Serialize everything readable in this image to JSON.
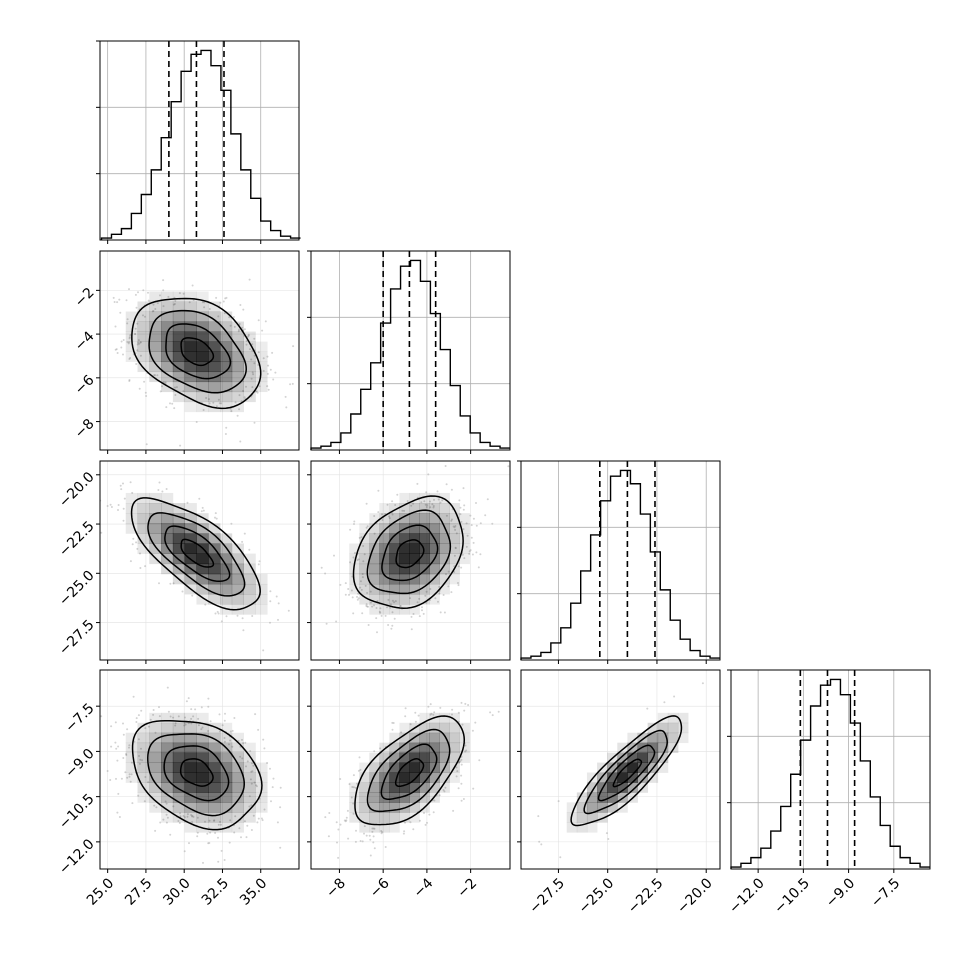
{
  "chart_data": {
    "type": "corner",
    "title": "",
    "grid": true,
    "colors": {
      "background": "#ffffff",
      "axes": "#000000",
      "grid": "#b0b0b0",
      "density": "#000000",
      "points": "#9e9e9e",
      "contours": "#000000",
      "quantile_lines": "#000000"
    },
    "parameters": [
      {
        "label": "",
        "range": [
          24.5,
          37.5
        ],
        "ticks": [
          25.0,
          27.5,
          30.0,
          32.5,
          35.0
        ],
        "tick_labels": [
          "25.0",
          "27.5",
          "30.0",
          "32.5",
          "35.0"
        ],
        "median": 30.8,
        "std": 2.1,
        "quantiles_16_50_84": [
          29.0,
          30.8,
          32.6
        ],
        "histogram": {
          "bin_edges": [
            24.6,
            25.25,
            25.9,
            26.55,
            27.2,
            27.85,
            28.5,
            29.15,
            29.8,
            30.45,
            31.1,
            31.75,
            32.4,
            33.05,
            33.7,
            34.35,
            35.0,
            35.65,
            36.3,
            36.95,
            37.6
          ],
          "relative_counts": [
            0.01,
            0.03,
            0.06,
            0.14,
            0.24,
            0.37,
            0.54,
            0.73,
            0.89,
            0.98,
            1.0,
            0.92,
            0.79,
            0.56,
            0.37,
            0.22,
            0.1,
            0.05,
            0.02,
            0.01
          ]
        }
      },
      {
        "label": "",
        "range": [
          -9.3,
          -0.2
        ],
        "ticks": [
          -8,
          -6,
          -4,
          -2
        ],
        "tick_labels": [
          "−8",
          "−6",
          "−4",
          "−2"
        ],
        "median": -4.8,
        "std": 1.25,
        "quantiles_16_50_84": [
          -6.0,
          -4.8,
          -3.6
        ],
        "histogram": {
          "bin_edges": [
            -9.3,
            -8.845,
            -8.39,
            -7.935,
            -7.48,
            -7.025,
            -6.57,
            -6.115,
            -5.66,
            -5.205,
            -4.75,
            -4.295,
            -3.84,
            -3.385,
            -2.93,
            -2.475,
            -2.02,
            -1.565,
            -1.11,
            -0.655,
            -0.2
          ],
          "relative_counts": [
            0.01,
            0.02,
            0.04,
            0.09,
            0.19,
            0.32,
            0.46,
            0.67,
            0.85,
            0.97,
            1.0,
            0.89,
            0.72,
            0.53,
            0.34,
            0.18,
            0.09,
            0.04,
            0.02,
            0.01
          ]
        }
      },
      {
        "label": "",
        "range": [
          -29.4,
          -19.3
        ],
        "ticks": [
          -27.5,
          -25.0,
          -22.5,
          -20.0
        ],
        "tick_labels": [
          "−27.5",
          "−25.0",
          "−22.5",
          "−20.0"
        ],
        "median": -24.0,
        "std": 1.4,
        "quantiles_16_50_84": [
          -25.4,
          -24.0,
          -22.6
        ],
        "histogram": {
          "bin_edges": [
            -29.4,
            -28.895,
            -28.39,
            -27.885,
            -27.38,
            -26.875,
            -26.37,
            -25.865,
            -25.36,
            -24.855,
            -24.35,
            -23.845,
            -23.34,
            -22.835,
            -22.33,
            -21.825,
            -21.32,
            -20.815,
            -20.31,
            -19.805,
            -19.3
          ],
          "relative_counts": [
            0.01,
            0.02,
            0.04,
            0.09,
            0.17,
            0.3,
            0.47,
            0.66,
            0.84,
            0.97,
            1.0,
            0.93,
            0.77,
            0.57,
            0.37,
            0.21,
            0.11,
            0.05,
            0.02,
            0.01
          ]
        }
      },
      {
        "label": "",
        "range": [
          -12.9,
          -6.3
        ],
        "ticks": [
          -12.0,
          -10.5,
          -9.0,
          -7.5
        ],
        "tick_labels": [
          "−12.0",
          "−10.5",
          "−9.0",
          "−7.5"
        ],
        "median": -9.7,
        "std": 0.9,
        "quantiles_16_50_84": [
          -10.6,
          -9.7,
          -8.8
        ],
        "histogram": {
          "bin_edges": [
            -12.9,
            -12.57,
            -12.24,
            -11.91,
            -11.58,
            -11.25,
            -10.92,
            -10.59,
            -10.26,
            -9.93,
            -9.6,
            -9.27,
            -8.94,
            -8.61,
            -8.28,
            -7.95,
            -7.62,
            -7.29,
            -6.96,
            -6.63,
            -6.3
          ],
          "relative_counts": [
            0.01,
            0.03,
            0.06,
            0.11,
            0.2,
            0.33,
            0.5,
            0.68,
            0.86,
            0.97,
            1.0,
            0.92,
            0.77,
            0.57,
            0.38,
            0.23,
            0.12,
            0.06,
            0.03,
            0.01
          ]
        }
      }
    ],
    "correlations": [
      {
        "row": 1,
        "col": 0,
        "rho": -0.35
      },
      {
        "row": 2,
        "col": 0,
        "rho": -0.7
      },
      {
        "row": 2,
        "col": 1,
        "rho": 0.3
      },
      {
        "row": 3,
        "col": 0,
        "rho": -0.3
      },
      {
        "row": 3,
        "col": 1,
        "rho": 0.6
      },
      {
        "row": 3,
        "col": 2,
        "rho": 0.85
      }
    ],
    "contour_levels_sigma": [
      0.5,
      1.0,
      1.5,
      2.0
    ],
    "density_grid_bins": 12
  }
}
